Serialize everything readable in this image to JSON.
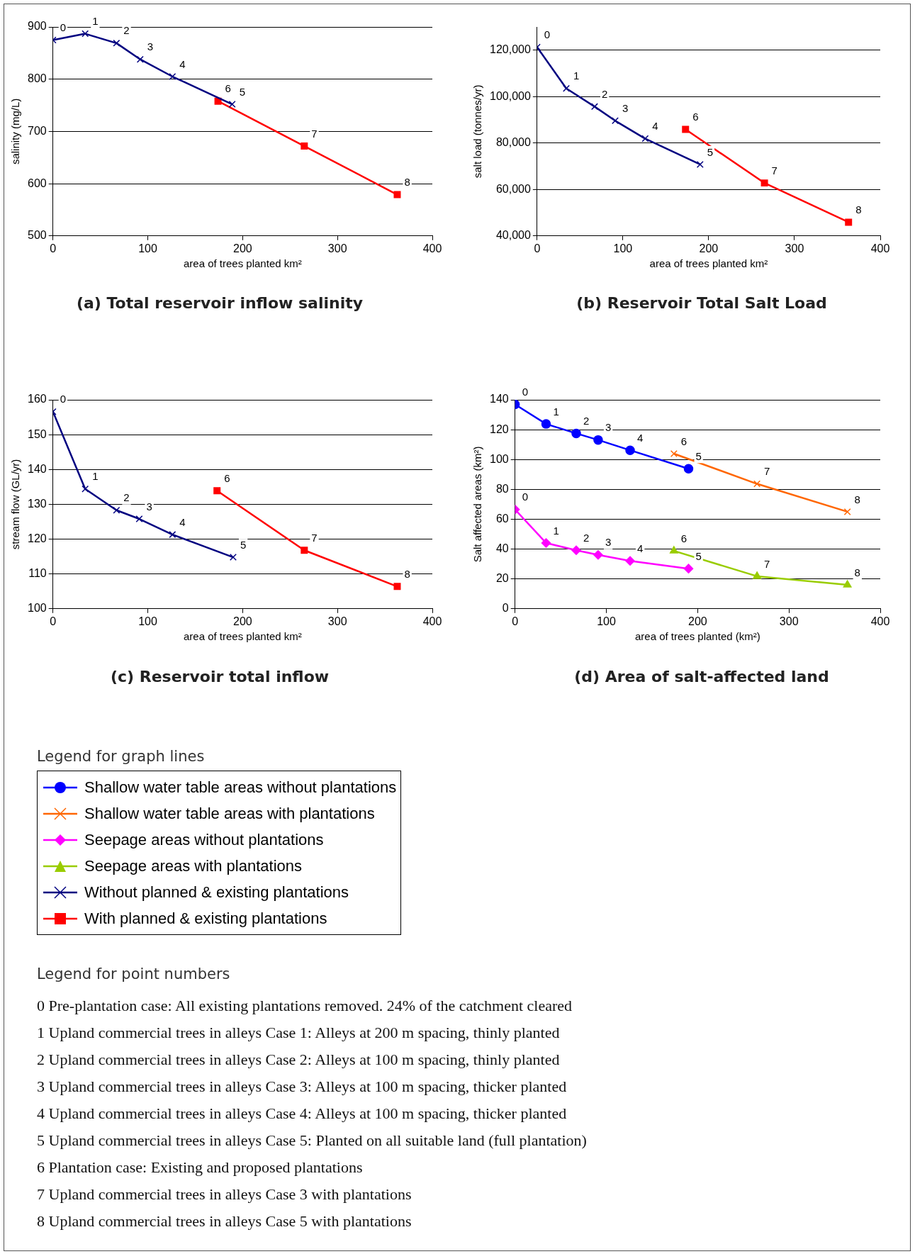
{
  "chart_data": [
    {
      "type": "line",
      "title": "(a) Total reservoir inflow salinity",
      "xlabel": "area of trees planted km²",
      "ylabel": "salinity (mg/L)",
      "xlim": [
        0,
        400
      ],
      "xticks": [
        0,
        100,
        200,
        300,
        400
      ],
      "ylim": [
        500,
        900
      ],
      "yticks": [
        500,
        600,
        700,
        800,
        900
      ],
      "grid": "y",
      "legend": "bottom",
      "series": [
        {
          "name": "Without planned & existing plantations",
          "color": "#000080",
          "marker": "cross",
          "x": [
            0,
            34,
            67,
            92,
            126,
            189
          ],
          "values": [
            875,
            887,
            869,
            838,
            805,
            752
          ]
        },
        {
          "name": "With planned & existing plantations",
          "color": "#ff0000",
          "marker": "square",
          "x": [
            174,
            265,
            363
          ],
          "values": [
            758,
            672,
            579
          ]
        }
      ],
      "annotations": [
        {
          "text": "0",
          "x": 0,
          "y": 875
        },
        {
          "text": "1",
          "x": 34,
          "y": 887
        },
        {
          "text": "2",
          "x": 67,
          "y": 869
        },
        {
          "text": "3",
          "x": 92,
          "y": 838
        },
        {
          "text": "4",
          "x": 126,
          "y": 805
        },
        {
          "text": "5",
          "x": 189,
          "y": 752
        },
        {
          "text": "6",
          "x": 174,
          "y": 758
        },
        {
          "text": "7",
          "x": 265,
          "y": 672
        },
        {
          "text": "8",
          "x": 363,
          "y": 579
        }
      ]
    },
    {
      "type": "line",
      "title": "(b) Reservoir Total Salt Load",
      "xlabel": "area of trees planted km²",
      "ylabel": "salt load (tonnes/yr)",
      "xlim": [
        0,
        400
      ],
      "xticks": [
        0,
        100,
        200,
        300,
        400
      ],
      "ylim": [
        40000,
        130000
      ],
      "yticks": [
        {
          "value": 40000,
          "label": "40,000"
        },
        {
          "value": 60000,
          "label": "60,000"
        },
        {
          "value": 80000,
          "label": "80,000"
        },
        {
          "value": 100000,
          "label": "100,000"
        },
        {
          "value": 120000,
          "label": "120,000"
        }
      ],
      "grid": "y",
      "legend": "bottom",
      "series": [
        {
          "name": "Without planned & existing plantations",
          "color": "#000080",
          "marker": "cross",
          "x": [
            0,
            34,
            67,
            91,
            126,
            190
          ],
          "values": [
            121300,
            103500,
            95700,
            89600,
            81900,
            70800
          ]
        },
        {
          "name": "With planned & existing plantations",
          "color": "#ff0000",
          "marker": "square",
          "x": [
            173,
            265,
            363
          ],
          "values": [
            85900,
            62800,
            45900
          ]
        }
      ],
      "annotations": [
        {
          "text": "0",
          "x": 0,
          "y": 121300
        },
        {
          "text": "1",
          "x": 34,
          "y": 103500
        },
        {
          "text": "2",
          "x": 67,
          "y": 95700
        },
        {
          "text": "3",
          "x": 91,
          "y": 89600
        },
        {
          "text": "4",
          "x": 126,
          "y": 81900
        },
        {
          "text": "5",
          "x": 190,
          "y": 70800
        },
        {
          "text": "6",
          "x": 173,
          "y": 85900
        },
        {
          "text": "7",
          "x": 265,
          "y": 62800
        },
        {
          "text": "8",
          "x": 363,
          "y": 45900
        }
      ]
    },
    {
      "type": "line",
      "title": "(c) Reservoir total inflow",
      "xlabel": "area of trees planted km²",
      "ylabel": "stream flow (GL/yr)",
      "xlim": [
        0,
        400
      ],
      "xticks": [
        0,
        100,
        200,
        300,
        400
      ],
      "ylim": [
        100,
        160
      ],
      "yticks": [
        100,
        110,
        120,
        130,
        140,
        150,
        160
      ],
      "grid": "y",
      "legend": "bottom",
      "series": [
        {
          "name": "Without planned & existing plantations",
          "color": "#000080",
          "marker": "cross",
          "x": [
            0,
            34,
            67,
            91,
            126,
            190
          ],
          "values": [
            156.6,
            134.4,
            128.3,
            125.8,
            121.3,
            114.8
          ]
        },
        {
          "name": "With planned & existing plantations",
          "color": "#ff0000",
          "marker": "square",
          "x": [
            173,
            265,
            363
          ],
          "values": [
            133.9,
            116.8,
            106.4
          ]
        }
      ],
      "annotations": [
        {
          "text": "0",
          "x": 0,
          "y": 156.6
        },
        {
          "text": "1",
          "x": 34,
          "y": 134.4
        },
        {
          "text": "2",
          "x": 67,
          "y": 128.3
        },
        {
          "text": "3",
          "x": 91,
          "y": 125.8
        },
        {
          "text": "4",
          "x": 126,
          "y": 121.3
        },
        {
          "text": "5",
          "x": 190,
          "y": 114.8
        },
        {
          "text": "6",
          "x": 173,
          "y": 133.9
        },
        {
          "text": "7",
          "x": 265,
          "y": 116.8
        },
        {
          "text": "8",
          "x": 363,
          "y": 106.4
        }
      ]
    },
    {
      "type": "line",
      "title": "(d) Area of salt-affected land",
      "xlabel": "area of trees planted (km²)",
      "ylabel": "Salt affected areas (km²)",
      "xlim": [
        0,
        400
      ],
      "xticks": [
        0,
        100,
        200,
        300,
        400
      ],
      "ylim": [
        0,
        140
      ],
      "yticks": [
        0,
        20,
        40,
        60,
        80,
        100,
        120,
        140
      ],
      "grid": "y",
      "legend": "bottom",
      "legend_title": "Legend for graph lines",
      "series": [
        {
          "name": "Shallow water table areas without plantations",
          "color": "#0000ff",
          "marker": "circle",
          "x": [
            0,
            34,
            67,
            91,
            126,
            190
          ],
          "values": [
            136.9,
            123.8,
            117.5,
            113.1,
            106.2,
            93.8
          ]
        },
        {
          "name": "Shallow water table areas with plantations",
          "color": "#ff6600",
          "marker": "cross",
          "x": [
            174,
            265,
            364
          ],
          "values": [
            103.9,
            83.7,
            65
          ]
        },
        {
          "name": "Seepage areas without plantations",
          "color": "#ff00ff",
          "marker": "diamond",
          "x": [
            0,
            34,
            67,
            91,
            126,
            190
          ],
          "values": [
            66.5,
            44.1,
            39.2,
            36.1,
            32.1,
            26.9
          ]
        },
        {
          "name": "Seepage areas with plantations",
          "color": "#99cc00",
          "marker": "triangle",
          "x": [
            174,
            265,
            364
          ],
          "values": [
            38.8,
            21.8,
            16
          ]
        }
      ],
      "annotations": [
        {
          "text": "0",
          "x": 0,
          "y": 136.9
        },
        {
          "text": "1",
          "x": 34,
          "y": 123.8
        },
        {
          "text": "2",
          "x": 67,
          "y": 117.5
        },
        {
          "text": "3",
          "x": 91,
          "y": 113.1
        },
        {
          "text": "4",
          "x": 126,
          "y": 106.2
        },
        {
          "text": "5",
          "x": 190,
          "y": 93.8
        },
        {
          "text": "6",
          "x": 174,
          "y": 103.9
        },
        {
          "text": "7",
          "x": 265,
          "y": 83.7
        },
        {
          "text": "8",
          "x": 364,
          "y": 65
        },
        {
          "text": "0",
          "x": 0,
          "y": 66.5
        },
        {
          "text": "1",
          "x": 34,
          "y": 44.1
        },
        {
          "text": "2",
          "x": 67,
          "y": 39.2
        },
        {
          "text": "3",
          "x": 91,
          "y": 36.1
        },
        {
          "text": "4",
          "x": 126,
          "y": 32.1
        },
        {
          "text": "5",
          "x": 190,
          "y": 26.9
        },
        {
          "text": "6",
          "x": 174,
          "y": 38.8
        },
        {
          "text": "7",
          "x": 265,
          "y": 21.8
        },
        {
          "text": "8",
          "x": 364,
          "y": 16
        }
      ]
    },
    {
      "type": "other",
      "title": "Legend for point numbers",
      "annotations": [
        "0 Pre-plantation case: All existing plantations removed. 24% of the catchment cleared",
        "1 Upland commercial trees in alleys Case 1: Alleys at 200 m spacing, thinly planted",
        "2 Upland commercial trees in alleys Case 2: Alleys at 100 m spacing, thinly planted",
        "3 Upland commercial trees in alleys Case 3: Alleys at 100 m spacing, thicker planted",
        "4 Upland commercial trees in alleys Case 4: Alleys at 100 m spacing, thicker planted",
        "5 Upland commercial trees in alleys Case 5: Planted on all suitable land (full plantation)",
        "6 Plantation case: Existing and proposed plantations",
        "7 Upland commercial trees in alleys Case 3 with plantations",
        "8 Upland commercial trees in alleys Case 5 with plantations"
      ]
    }
  ]
}
